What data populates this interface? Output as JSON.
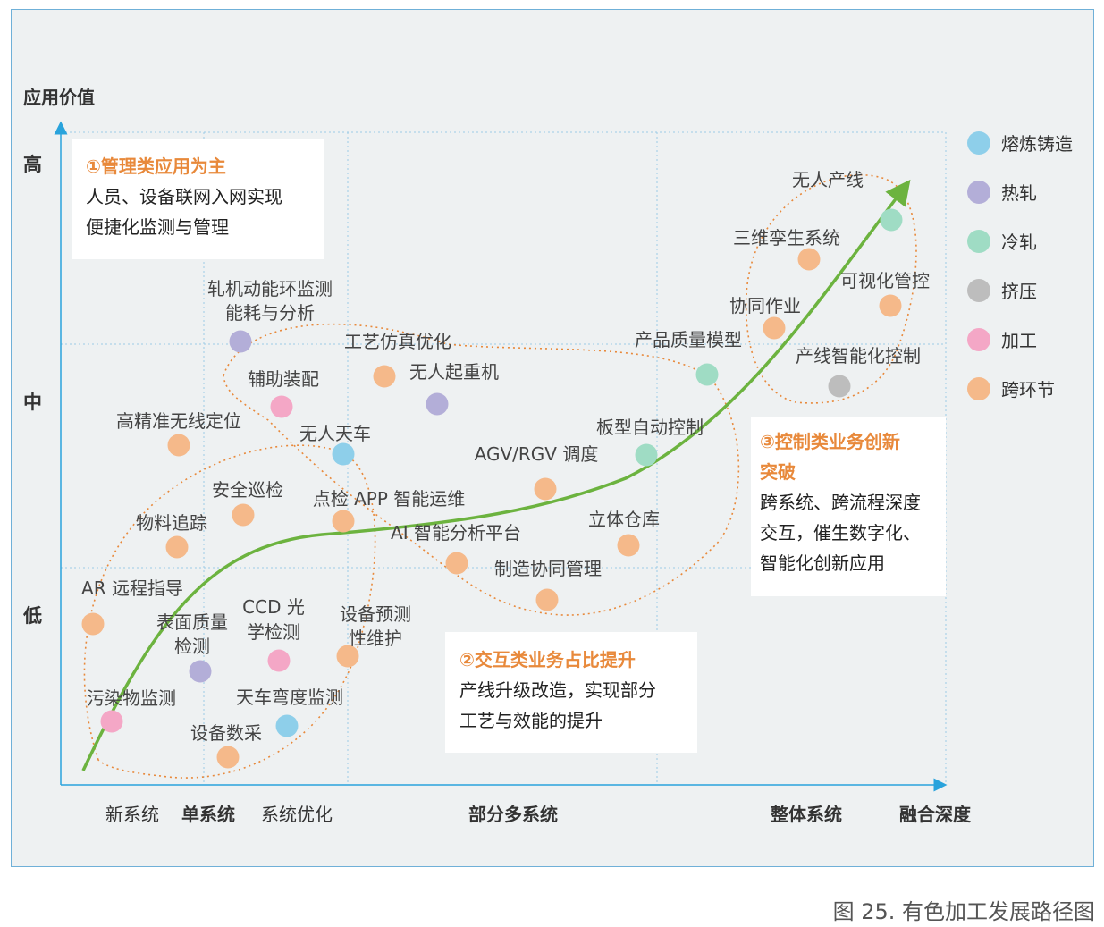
{
  "caption": "图 25. 有色加工发展路径图",
  "axes": {
    "y_title": "应用价值",
    "x_title": "融合深度",
    "y_levels": [
      "高",
      "中",
      "低"
    ],
    "x_levels": [
      "新系统",
      "单系统",
      "系统优化",
      "部分多系统",
      "整体系统"
    ]
  },
  "boxes": [
    {
      "title": "①管理类应用为主",
      "lines": [
        "人员、设备联网入网实现",
        "便捷化监测与管理"
      ]
    },
    {
      "title": "②交互类业务占比提升",
      "lines": [
        "产线升级改造，实现部分",
        "工艺与效能的提升"
      ]
    },
    {
      "title": "③控制类业务创新",
      "title2": "突破",
      "lines": [
        "跨系统、跨流程深度",
        "交互，催生数字化、",
        "智能化创新应用"
      ]
    }
  ],
  "legend": [
    {
      "name": "熔炼铸造",
      "color": "#8ecfea"
    },
    {
      "name": "热轧",
      "color": "#b3aed8"
    },
    {
      "name": "冷轧",
      "color": "#9fdcc4"
    },
    {
      "name": "挤压",
      "color": "#bdbdbd"
    },
    {
      "name": "加工",
      "color": "#f4a7c6"
    },
    {
      "name": "跨环节",
      "color": "#f5b98a"
    }
  ],
  "chart_data": {
    "type": "table",
    "columns": [
      "label",
      "category"
    ],
    "rows": [
      [
        "无人产线",
        "冷轧"
      ],
      [
        "三维孪生系统",
        "跨环节"
      ],
      [
        "可视化管控",
        "跨环节"
      ],
      [
        "协同作业",
        "跨环节"
      ],
      [
        "产品质量模型",
        "冷轧"
      ],
      [
        "产线智能化控制",
        "挤压"
      ],
      [
        "轧机动能环监测",
        "热轧"
      ],
      [
        "能耗与分析",
        "热轧"
      ],
      [
        "工艺仿真优化",
        "跨环节"
      ],
      [
        "无人起重机",
        "热轧"
      ],
      [
        "辅助装配",
        "加工"
      ],
      [
        "高精准无线定位",
        "跨环节"
      ],
      [
        "无人天车",
        "熔炼铸造"
      ],
      [
        "板型自动控制",
        "冷轧"
      ],
      [
        "AGV/RGV 调度",
        "跨环节"
      ],
      [
        "安全巡检",
        "跨环节"
      ],
      [
        "点检 APP 智能运维",
        "跨环节"
      ],
      [
        "AI 智能分析平台",
        "跨环节"
      ],
      [
        "立体仓库",
        "跨环节"
      ],
      [
        "物料追踪",
        "跨环节"
      ],
      [
        "制造协同管理",
        "跨环节"
      ],
      [
        "AR 远程指导",
        "跨环节"
      ],
      [
        "表面质量",
        "热轧"
      ],
      [
        "检测",
        "热轧"
      ],
      [
        "CCD 光",
        "加工"
      ],
      [
        "学检测",
        "加工"
      ],
      [
        "设备预测",
        "跨环节"
      ],
      [
        "性维护",
        "跨环节"
      ],
      [
        "污染物监测",
        "加工"
      ],
      [
        "天车弯度监测",
        "熔炼铸造"
      ],
      [
        "设备数采",
        "跨环节"
      ]
    ]
  }
}
